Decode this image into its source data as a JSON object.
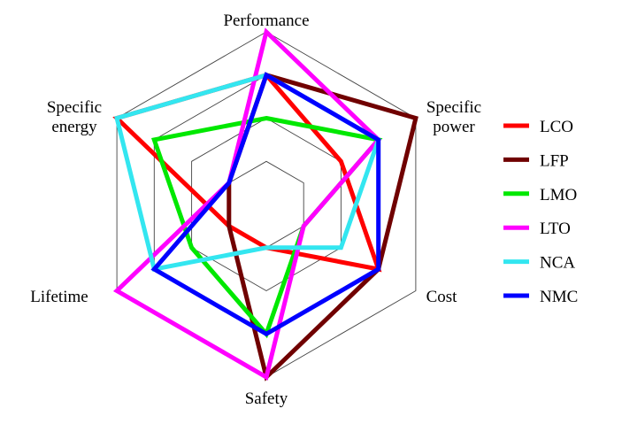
{
  "chart_data": {
    "type": "radar",
    "axes": [
      "Performance",
      "Specific power",
      "Cost",
      "Safety",
      "Lifetime",
      "Specific energy"
    ],
    "axis_label_lines": [
      [
        "Performance"
      ],
      [
        "Specific",
        "power"
      ],
      [
        "Cost"
      ],
      [
        "Safety"
      ],
      [
        "Lifetime"
      ],
      [
        "Specific",
        "energy"
      ]
    ],
    "scale": {
      "min": 0,
      "max": 4,
      "rings": [
        1,
        2,
        3,
        4
      ]
    },
    "series": [
      {
        "name": "LCO",
        "color": "#ff0000",
        "values": [
          3,
          2,
          3,
          1,
          1,
          4
        ]
      },
      {
        "name": "LFP",
        "color": "#700000",
        "values": [
          3,
          4,
          3,
          4,
          1,
          1
        ]
      },
      {
        "name": "LMO",
        "color": "#00e800",
        "values": [
          2,
          3,
          1,
          3,
          2,
          3
        ]
      },
      {
        "name": "LTO",
        "color": "#ff00ff",
        "values": [
          4,
          3,
          1,
          4,
          4,
          1
        ]
      },
      {
        "name": "NCA",
        "color": "#33e6f0",
        "values": [
          3,
          3,
          2,
          1,
          3,
          4
        ]
      },
      {
        "name": "NMC",
        "color": "#0000ff",
        "values": [
          3,
          3,
          3,
          3,
          3,
          1
        ]
      }
    ],
    "legend_placement": "right"
  }
}
